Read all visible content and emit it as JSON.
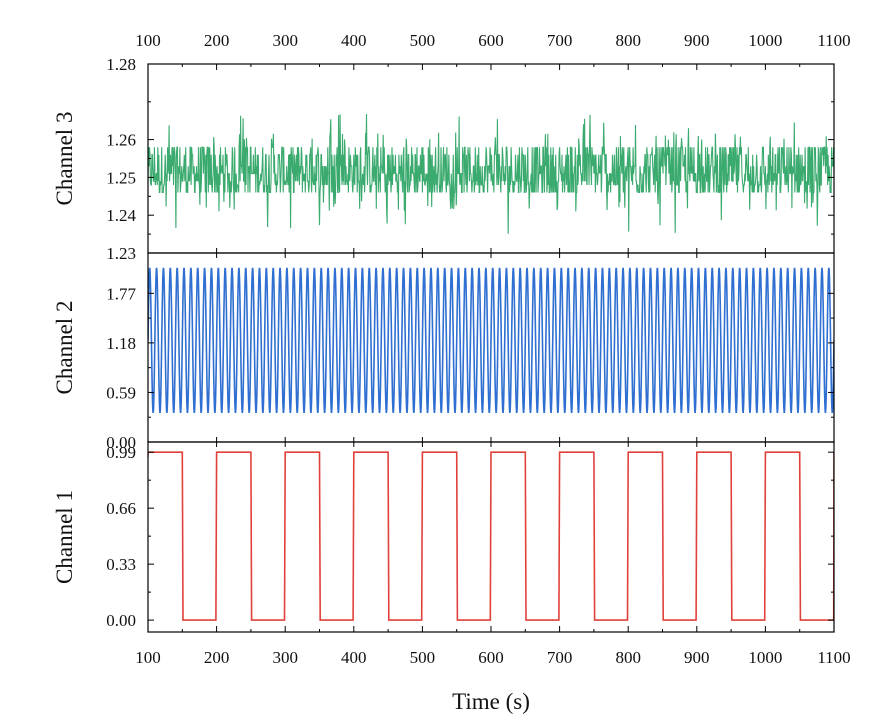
{
  "chart_data": {
    "type": "line",
    "xlabel": "Time (s)",
    "xlim": [
      100,
      1100
    ],
    "x_ticks": [
      100,
      200,
      300,
      400,
      500,
      600,
      700,
      800,
      900,
      1000,
      1100
    ],
    "top_axis_ticks": true,
    "grid": false,
    "panels": [
      {
        "ylabel": "Channel 3",
        "color": "#3aaa6e",
        "ylim": [
          1.23,
          1.28
        ],
        "y_ticks": [
          1.23,
          1.24,
          1.25,
          1.26,
          1.28
        ],
        "signal": "noisy constant",
        "mean": 1.251,
        "band": [
          1.246,
          1.258
        ],
        "min": 1.235,
        "max": 1.267
      },
      {
        "ylabel": "Channel 2",
        "color": "#2f6fd1",
        "ylim": [
          0.0,
          2.25
        ],
        "y_ticks": [
          0.0,
          0.59,
          1.18,
          1.77
        ],
        "signal": "sine",
        "amplitude": 0.86,
        "offset": 1.21,
        "period_s": 10
      },
      {
        "ylabel": "Channel 1",
        "color": "#e0403a",
        "ylim": [
          -0.07,
          1.05
        ],
        "y_ticks": [
          0.0,
          0.33,
          0.66,
          0.99
        ],
        "signal": "square",
        "low": 0.0,
        "high": 0.99,
        "period_s": 100,
        "high_segments": [
          [
            100,
            150
          ],
          [
            200,
            250
          ],
          [
            300,
            350
          ],
          [
            400,
            450
          ],
          [
            500,
            550
          ],
          [
            600,
            650
          ],
          [
            700,
            750
          ],
          [
            800,
            850
          ],
          [
            900,
            950
          ],
          [
            1000,
            1050
          ]
        ]
      }
    ]
  }
}
